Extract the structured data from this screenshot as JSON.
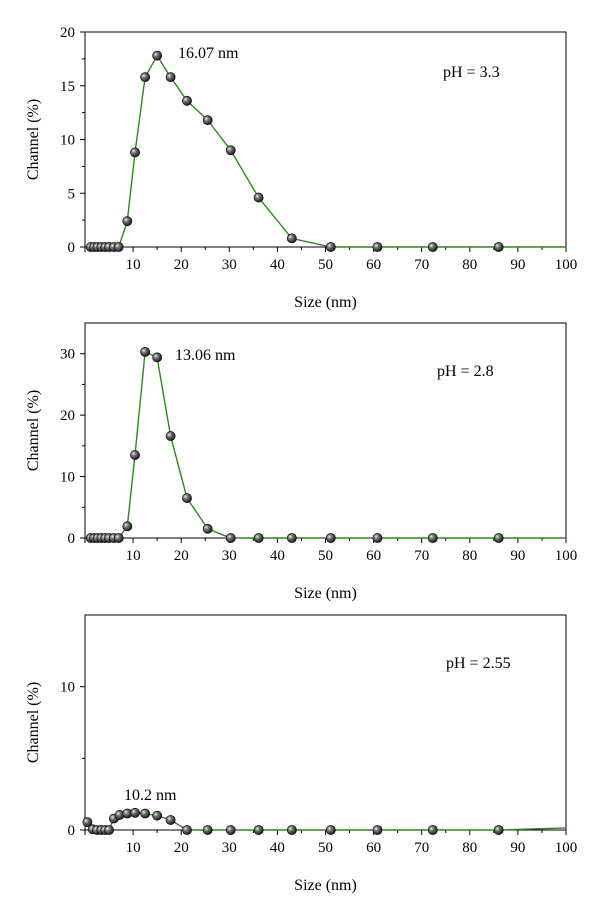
{
  "chart_data": [
    {
      "type": "line",
      "annotation_peak": "16.07 nm",
      "annotation_ph": "pH = 3.3",
      "xlabel": "Size (nm)",
      "ylabel": "Channel (%)",
      "xlim": [
        0,
        100
      ],
      "ylim": [
        0,
        20
      ],
      "xticks": [
        "10",
        "20",
        "30",
        "40",
        "50",
        "60",
        "70",
        "80",
        "90",
        "100"
      ],
      "yticks": [
        "0",
        "5",
        "10",
        "15",
        "20"
      ],
      "line_color": "#2a8a1a",
      "series": [
        {
          "x": [
            1.2,
            1.9,
            2.6,
            3.4,
            4.2,
            5.0,
            6.0,
            7.0,
            8.8,
            10.4,
            12.5,
            15.0,
            17.8,
            21.2,
            25.5,
            30.3,
            36.1,
            43.0,
            51.1,
            60.8,
            72.3,
            86.0,
            100
          ],
          "y": [
            0,
            0,
            0,
            0,
            0,
            0,
            0,
            0,
            2.4,
            8.8,
            15.8,
            17.8,
            15.8,
            13.6,
            11.8,
            9.0,
            4.6,
            0.8,
            0,
            0,
            0,
            0,
            0
          ],
          "markers": [
            true,
            true,
            true,
            true,
            true,
            true,
            true,
            true,
            true,
            true,
            true,
            true,
            true,
            true,
            true,
            true,
            true,
            true,
            true,
            true,
            true,
            true,
            false
          ]
        }
      ]
    },
    {
      "type": "line",
      "annotation_peak": "13.06 nm",
      "annotation_ph": "pH = 2.8",
      "xlabel": "Size (nm)",
      "ylabel": "Channel (%)",
      "xlim": [
        0,
        100
      ],
      "ylim": [
        0,
        35
      ],
      "xticks": [
        "10",
        "20",
        "30",
        "40",
        "50",
        "60",
        "70",
        "80",
        "90",
        "100"
      ],
      "yticks": [
        "0",
        "10",
        "20",
        "30"
      ],
      "line_color": "#2a8a1a",
      "series": [
        {
          "x": [
            1.2,
            1.9,
            2.6,
            3.4,
            4.2,
            5.0,
            6.0,
            7.0,
            8.8,
            10.4,
            12.5,
            15.0,
            17.8,
            21.2,
            25.5,
            30.3,
            36.1,
            43.0,
            51.1,
            60.8,
            72.3,
            86.0,
            100
          ],
          "y": [
            0,
            0,
            0,
            0,
            0,
            0,
            0,
            0,
            1.9,
            13.5,
            30.3,
            29.4,
            16.6,
            6.5,
            1.5,
            0,
            0,
            0,
            0,
            0,
            0,
            0,
            0
          ],
          "markers": [
            true,
            true,
            true,
            true,
            true,
            true,
            true,
            true,
            true,
            true,
            true,
            true,
            true,
            true,
            true,
            true,
            true,
            true,
            true,
            true,
            true,
            true,
            false
          ]
        }
      ]
    },
    {
      "type": "line",
      "annotation_peak": "10.2 nm",
      "annotation_ph": "pH = 2.55",
      "xlabel": "Size (nm)",
      "ylabel": "Channel (%)",
      "xlim": [
        0,
        100
      ],
      "ylim": [
        0,
        15
      ],
      "xticks": [
        "10",
        "20",
        "30",
        "40",
        "50",
        "60",
        "70",
        "80",
        "90",
        "100"
      ],
      "yticks": [
        "0",
        "10"
      ],
      "line_color": "#2a8a1a",
      "series": [
        {
          "x": [
            0.5,
            1.6,
            2.5,
            3.4,
            4.2,
            5.0,
            6.0,
            7.2,
            8.8,
            10.4,
            12.5,
            15.0,
            17.8,
            21.2,
            25.5,
            30.3,
            36.1,
            43.0,
            51.1,
            60.8,
            72.3,
            86.0,
            100
          ],
          "y": [
            0.55,
            0.05,
            0,
            0,
            0,
            0,
            0.8,
            1.05,
            1.15,
            1.2,
            1.15,
            1.0,
            0.7,
            0,
            0,
            0,
            0,
            0,
            0,
            0,
            0,
            0,
            0.15
          ],
          "markers": [
            true,
            true,
            true,
            true,
            true,
            true,
            true,
            true,
            true,
            true,
            true,
            true,
            true,
            true,
            true,
            true,
            true,
            true,
            true,
            true,
            true,
            true,
            false
          ]
        }
      ]
    }
  ]
}
